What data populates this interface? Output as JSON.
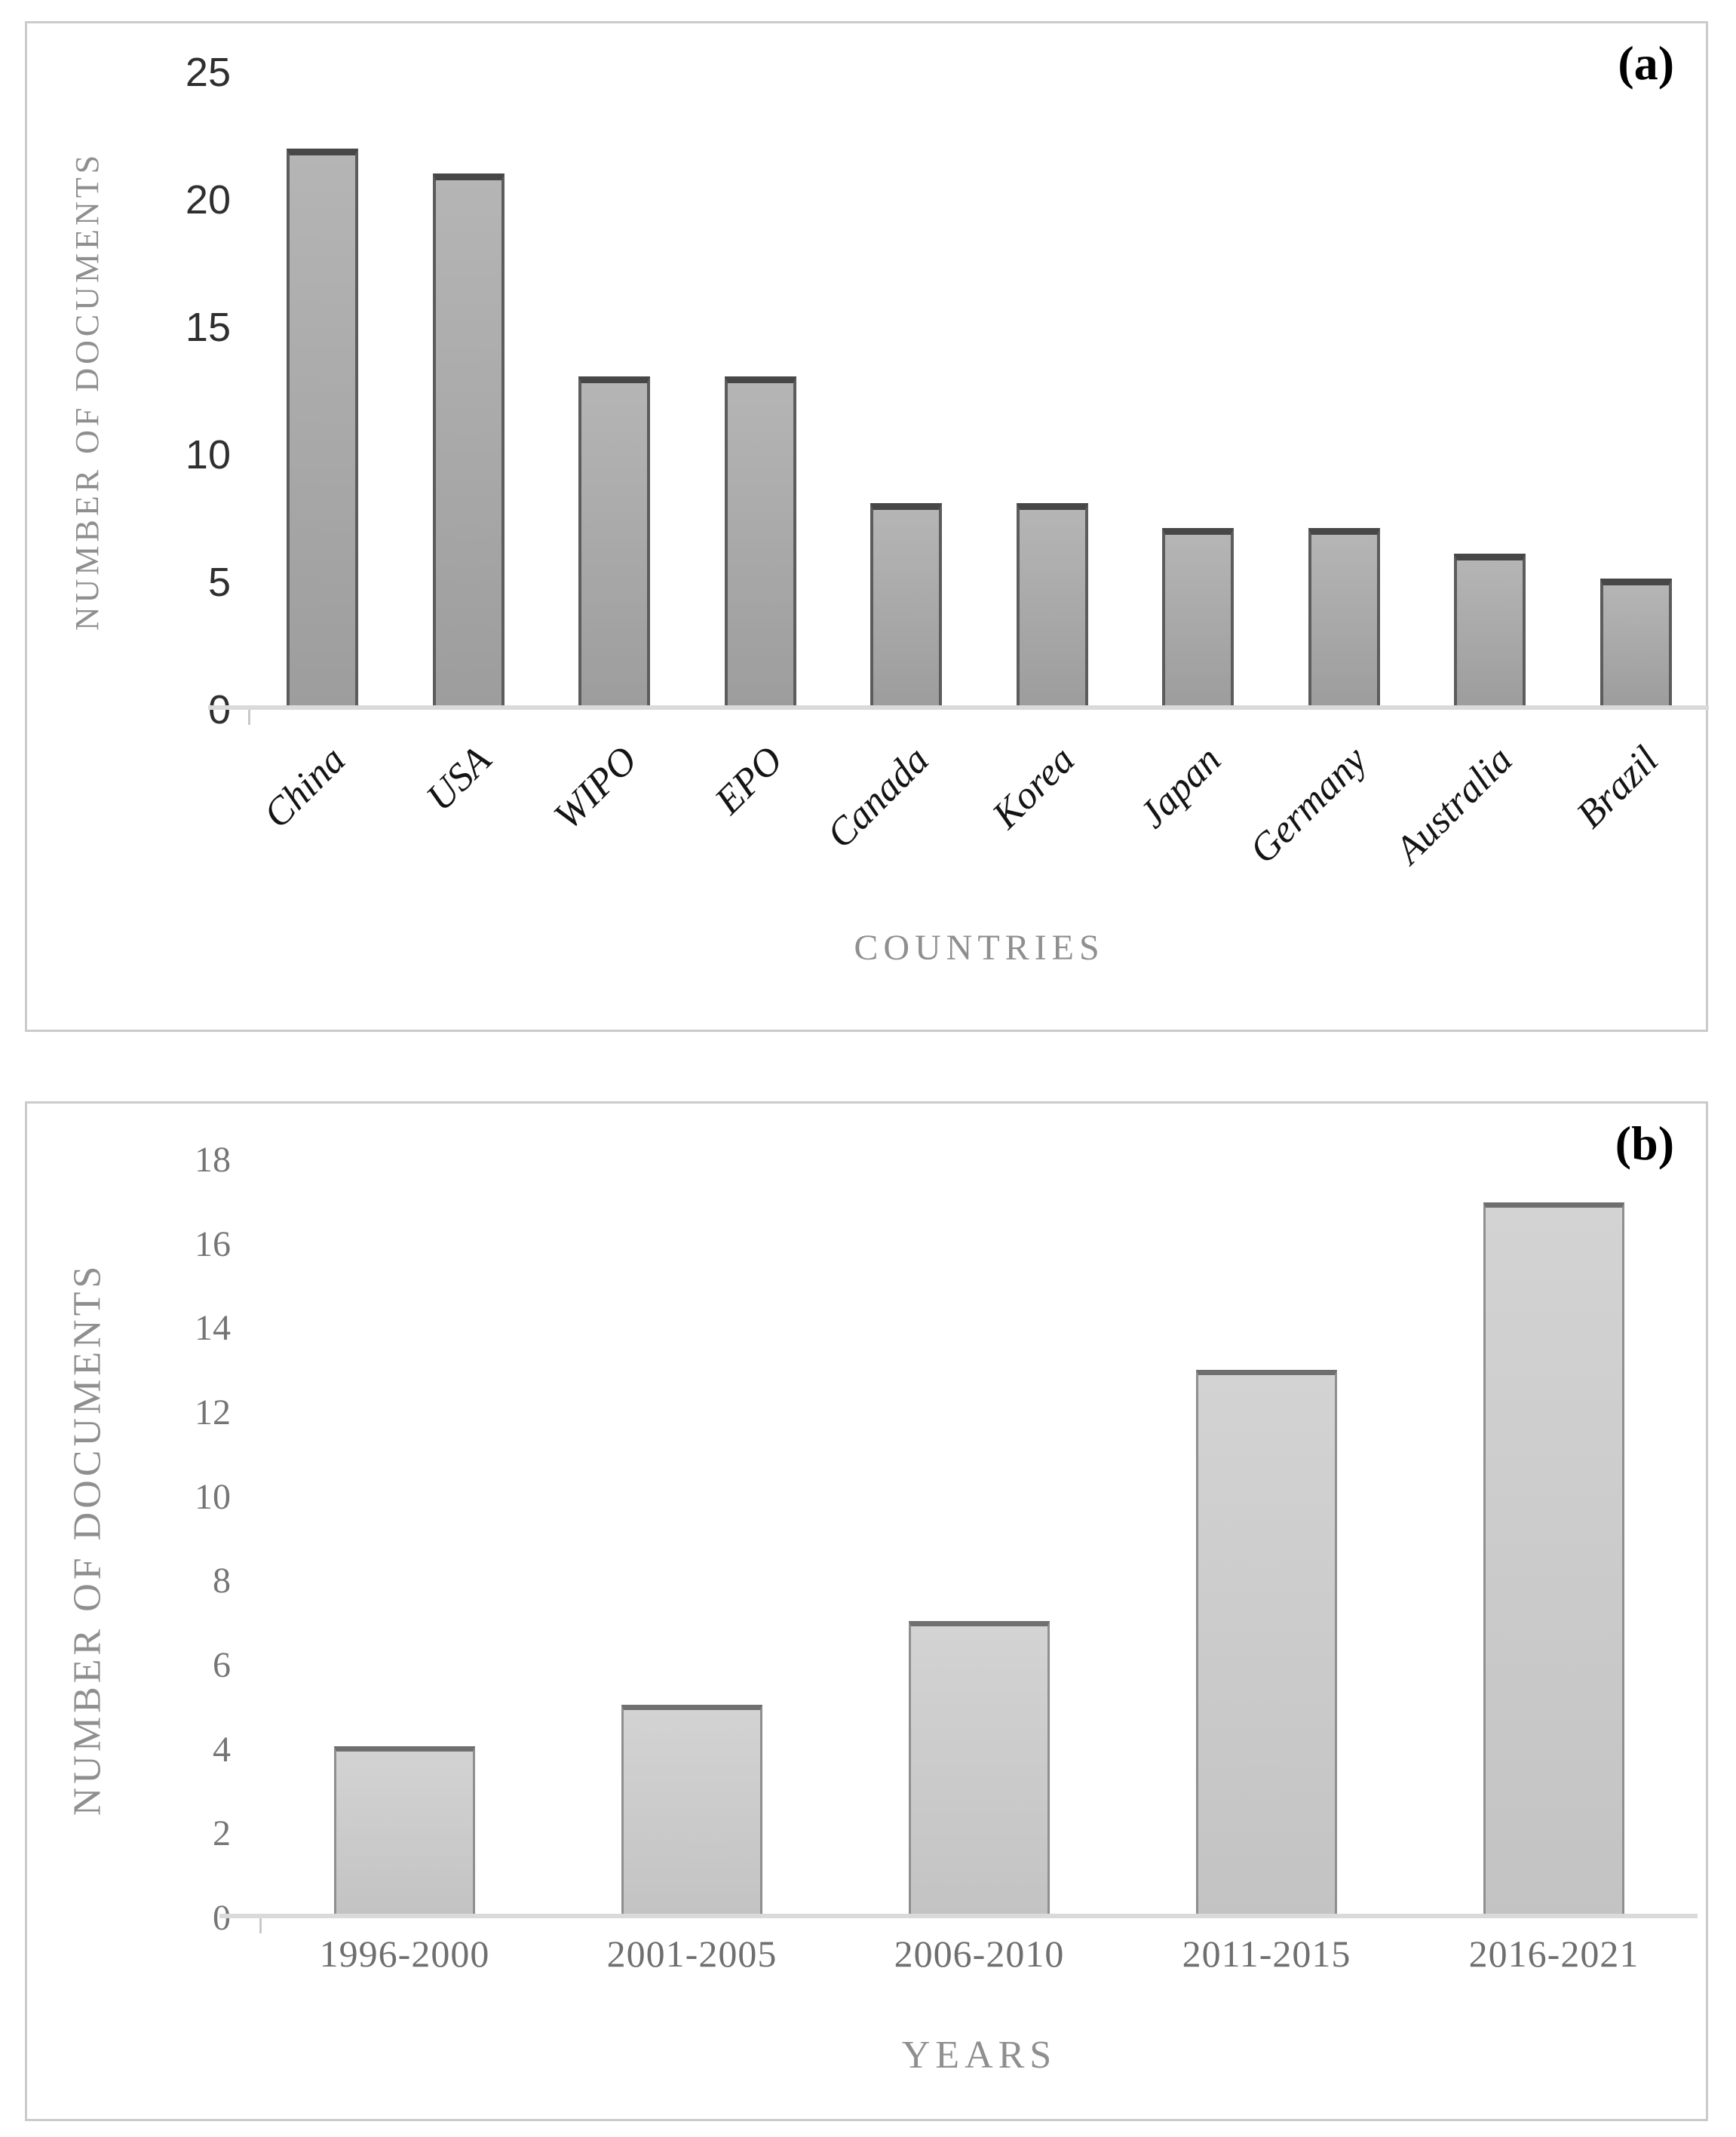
{
  "chart_data": [
    {
      "type": "bar",
      "panel_label": "(a)",
      "title": "",
      "categories": [
        "China",
        "USA",
        "WIPO",
        "EPO",
        "Canada",
        "Korea",
        "Japan",
        "Germany",
        "Australia",
        "Brazil"
      ],
      "values": [
        22,
        21,
        13,
        13,
        8,
        8,
        7,
        7,
        6,
        5
      ],
      "xlabel": "COUNTRIES",
      "ylabel": "NUMBER OF DOCUMENTS",
      "ylim": [
        0,
        25
      ],
      "ytick_step": 5,
      "ytick_labels": [
        25,
        20,
        15,
        10,
        5,
        0
      ],
      "grid": "off",
      "legend": "none",
      "bar_fill": "#a9a9a9",
      "bar_border": "#5c5c5c",
      "axis_line_color": "#dadada",
      "tick_color": "#2f2f2f",
      "axis_title_color": "#8f8f8f"
    },
    {
      "type": "bar",
      "panel_label": "(b)",
      "title": "",
      "categories": [
        "1996-2000",
        "2001-2005",
        "2006-2010",
        "2011-2015",
        "2016-2021"
      ],
      "values": [
        4,
        5,
        7,
        13,
        17
      ],
      "xlabel": "YEARS",
      "ylabel": "NUMBER OF DOCUMENTS",
      "ylim": [
        0,
        18
      ],
      "ytick_step": 2,
      "ytick_labels": [
        18,
        16,
        14,
        12,
        10,
        8,
        6,
        4,
        2,
        0
      ],
      "grid": "off",
      "legend": "none",
      "bar_fill": "#cbcbcb",
      "bar_border": "#8f8f8f",
      "axis_line_color": "#dadada",
      "tick_color": "#757575",
      "axis_title_color": "#8f8f8f"
    }
  ]
}
